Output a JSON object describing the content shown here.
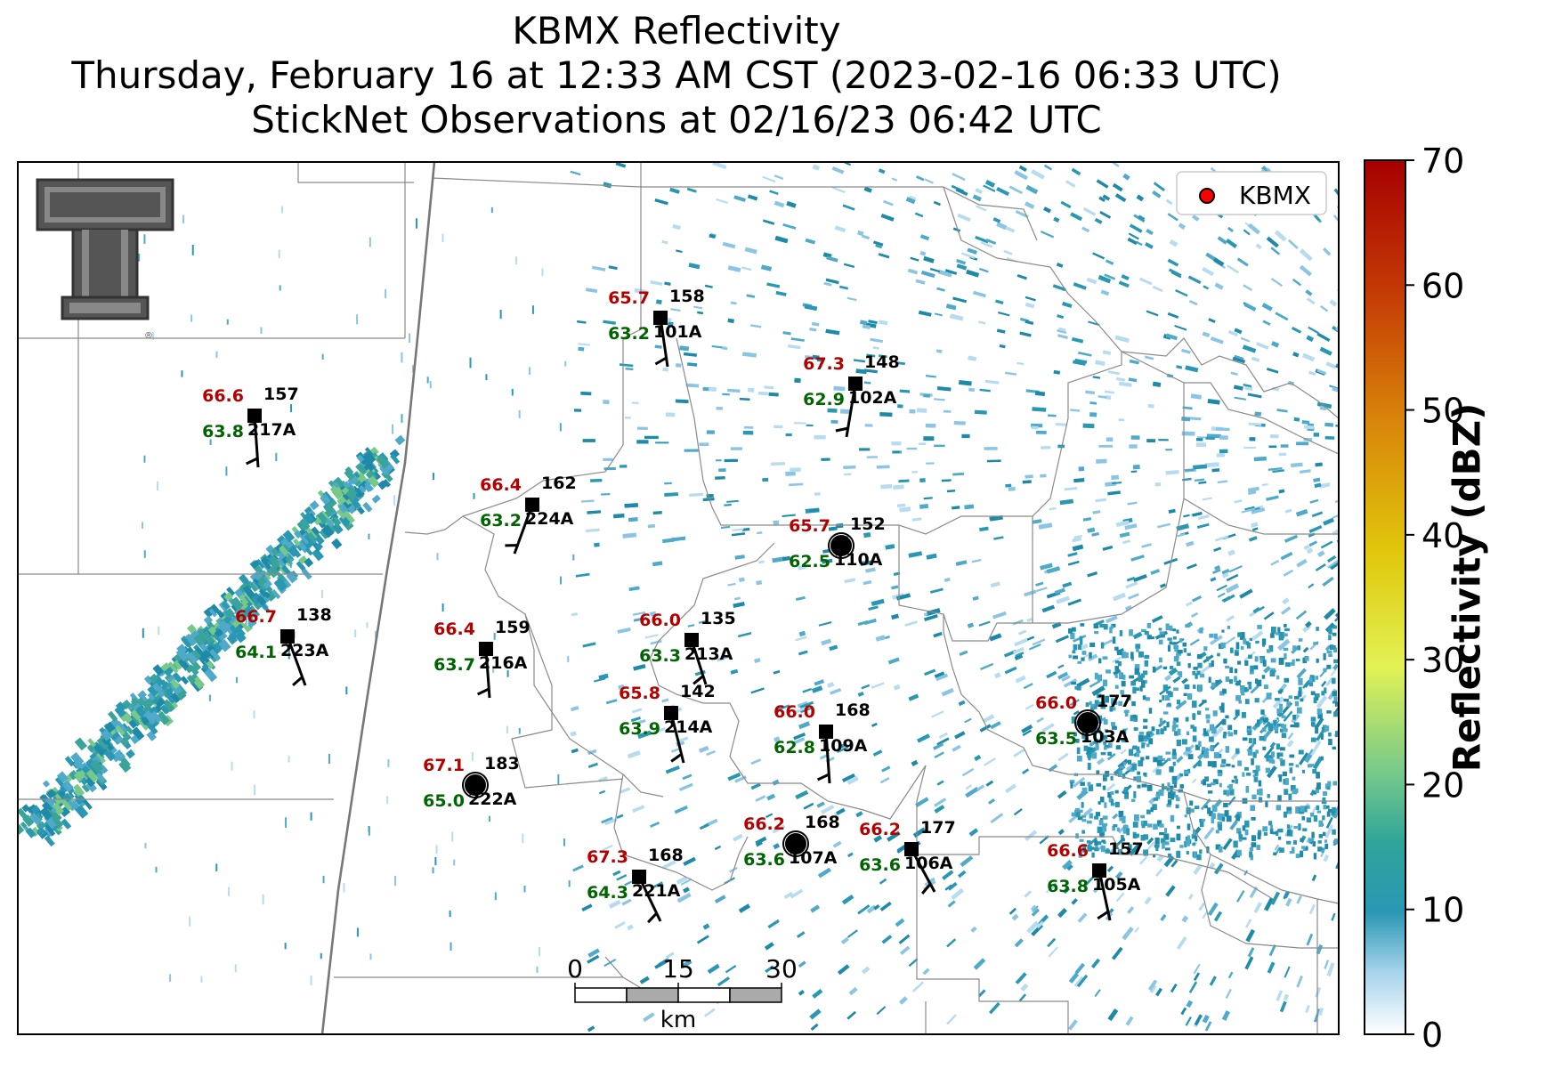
{
  "title": {
    "line1": "KBMX Reflectivity",
    "line2": "Thursday, February 16 at 12:33 AM CST (2023-02-16 06:33 UTC)",
    "line3": "StickNet Observations at 02/16/23 06:42 UTC"
  },
  "legend": {
    "label": "KBMX",
    "marker_color": "#ff0000"
  },
  "colorbar": {
    "label": "Reflectivity (dBZ)",
    "ticks": [
      "0",
      "10",
      "20",
      "30",
      "40",
      "50",
      "60",
      "70"
    ],
    "colors": [
      "#ffffff",
      "#a8d4ec",
      "#2a97b3",
      "#2fa59a",
      "#77c98a",
      "#e2f255",
      "#e0c80c",
      "#d9860a",
      "#c43a06",
      "#a60000"
    ]
  },
  "scale_bar": {
    "ticks": [
      "0",
      "15",
      "30"
    ],
    "unit": "km"
  },
  "logo": {
    "text": "Texas Tech Double T",
    "mark": "®"
  },
  "colors": {
    "temperature": "#b30000",
    "dewpoint": "#006400",
    "station_text": "#000000"
  },
  "stations": [
    {
      "id": "101A",
      "temp": "65.7",
      "dew": "63.2",
      "num": "158",
      "marker": "square"
    },
    {
      "id": "102A",
      "temp": "67.3",
      "dew": "62.9",
      "num": "148",
      "marker": "square"
    },
    {
      "id": "217A",
      "temp": "66.6",
      "dew": "63.8",
      "num": "157",
      "marker": "square"
    },
    {
      "id": "224A",
      "temp": "66.4",
      "dew": "63.2",
      "num": "162",
      "marker": "square"
    },
    {
      "id": "110A",
      "temp": "65.7",
      "dew": "62.5",
      "num": "152",
      "marker": "circle"
    },
    {
      "id": "223A",
      "temp": "66.7",
      "dew": "64.1",
      "num": "138",
      "marker": "square"
    },
    {
      "id": "216A",
      "temp": "66.4",
      "dew": "63.7",
      "num": "159",
      "marker": "square"
    },
    {
      "id": "213A",
      "temp": "66.0",
      "dew": "63.3",
      "num": "135",
      "marker": "square"
    },
    {
      "id": "214A",
      "temp": "65.8",
      "dew": "63.9",
      "num": "142",
      "marker": "square"
    },
    {
      "id": "109A",
      "temp": "66.0",
      "dew": "62.8",
      "num": "168",
      "marker": "square"
    },
    {
      "id": "103A",
      "temp": "66.0",
      "dew": "63.5",
      "num": "177",
      "marker": "circle"
    },
    {
      "id": "222A",
      "temp": "67.1",
      "dew": "65.0",
      "num": "183",
      "marker": "circle"
    },
    {
      "id": "107A",
      "temp": "66.2",
      "dew": "63.6",
      "num": "168",
      "marker": "circle"
    },
    {
      "id": "106A",
      "temp": "66.2",
      "dew": "63.6",
      "num": "177",
      "marker": "square"
    },
    {
      "id": "221A",
      "temp": "67.3",
      "dew": "64.3",
      "num": "168",
      "marker": "square"
    },
    {
      "id": "105A",
      "temp": "66.6",
      "dew": "63.8",
      "num": "157",
      "marker": "square"
    }
  ]
}
